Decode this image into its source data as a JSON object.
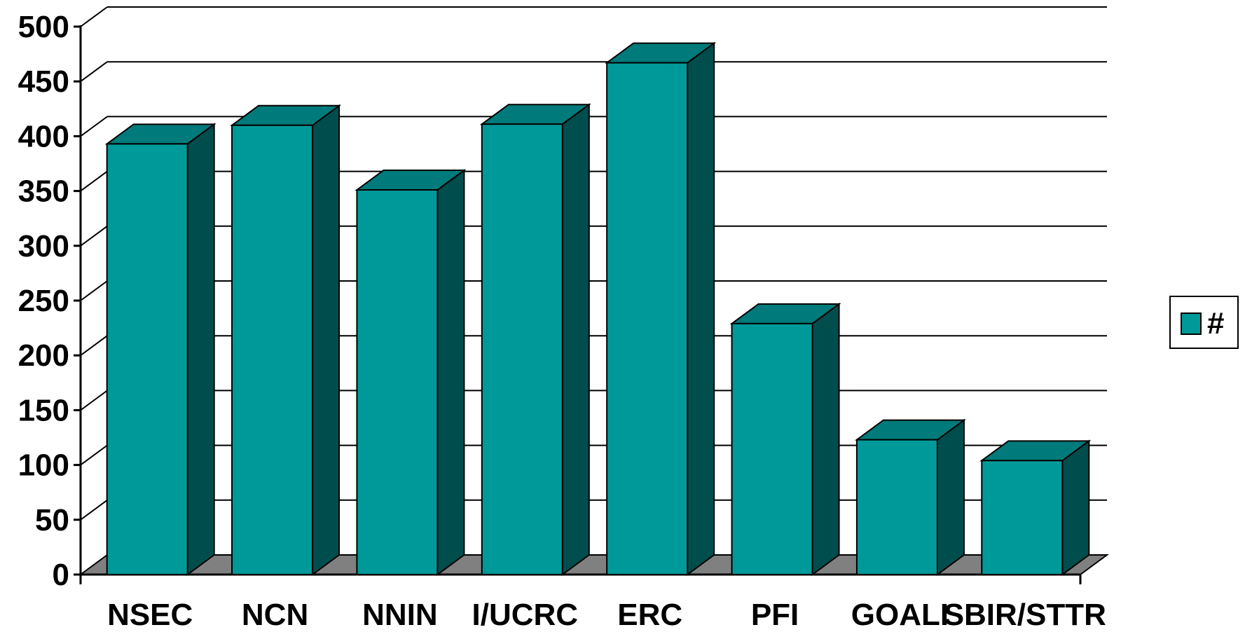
{
  "chart_data": {
    "type": "bar",
    "style": "3d-column",
    "categories": [
      "NSEC",
      "NCN",
      "NNIN",
      "I/UCRC",
      "ERC",
      "PFI",
      "GOALI",
      "SBIR/STTR"
    ],
    "series": [
      {
        "name": "#",
        "values": [
          393,
          410,
          351,
          411,
          467,
          229,
          123,
          104
        ]
      }
    ],
    "title": "",
    "xlabel": "",
    "ylabel": "",
    "ylim": [
      0,
      500
    ],
    "yticks": [
      0,
      50,
      100,
      150,
      200,
      250,
      300,
      350,
      400,
      450,
      500
    ],
    "grid": true,
    "legend_position": "right",
    "colors": {
      "bar_front": "#009999",
      "bar_top": "#007A7A",
      "bar_side": "#004D4D",
      "floor": "#808080",
      "grid": "#000000"
    }
  }
}
